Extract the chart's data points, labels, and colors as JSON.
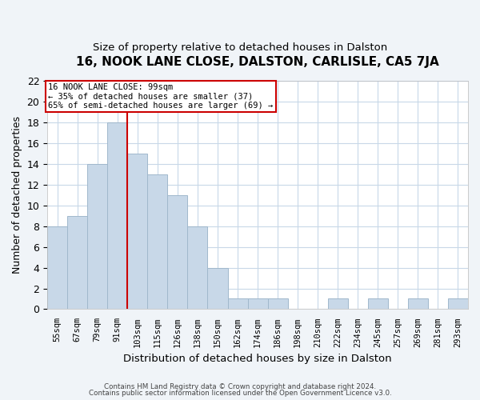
{
  "title": "16, NOOK LANE CLOSE, DALSTON, CARLISLE, CA5 7JA",
  "subtitle": "Size of property relative to detached houses in Dalston",
  "xlabel": "Distribution of detached houses by size in Dalston",
  "ylabel": "Number of detached properties",
  "bar_labels": [
    "55sqm",
    "67sqm",
    "79sqm",
    "91sqm",
    "103sqm",
    "115sqm",
    "126sqm",
    "138sqm",
    "150sqm",
    "162sqm",
    "174sqm",
    "186sqm",
    "198sqm",
    "210sqm",
    "222sqm",
    "234sqm",
    "245sqm",
    "257sqm",
    "269sqm",
    "281sqm",
    "293sqm"
  ],
  "bar_values": [
    8,
    9,
    14,
    18,
    15,
    13,
    11,
    8,
    4,
    1,
    1,
    1,
    0,
    0,
    1,
    0,
    1,
    0,
    1,
    0,
    1
  ],
  "bar_color": "#c8d8e8",
  "bar_edge_color": "#a0b8cc",
  "vline_color": "#cc0000",
  "annotation_line1": "16 NOOK LANE CLOSE: 99sqm",
  "annotation_line2": "← 35% of detached houses are smaller (37)",
  "annotation_line3": "65% of semi-detached houses are larger (69) →",
  "annotation_box_color": "white",
  "annotation_box_edge_color": "#cc0000",
  "ylim": [
    0,
    22
  ],
  "yticks": [
    0,
    2,
    4,
    6,
    8,
    10,
    12,
    14,
    16,
    18,
    20,
    22
  ],
  "footer_line1": "Contains HM Land Registry data © Crown copyright and database right 2024.",
  "footer_line2": "Contains public sector information licensed under the Open Government Licence v3.0.",
  "bg_color": "#f0f4f8",
  "plot_bg_color": "white",
  "grid_color": "#c8d8e8"
}
